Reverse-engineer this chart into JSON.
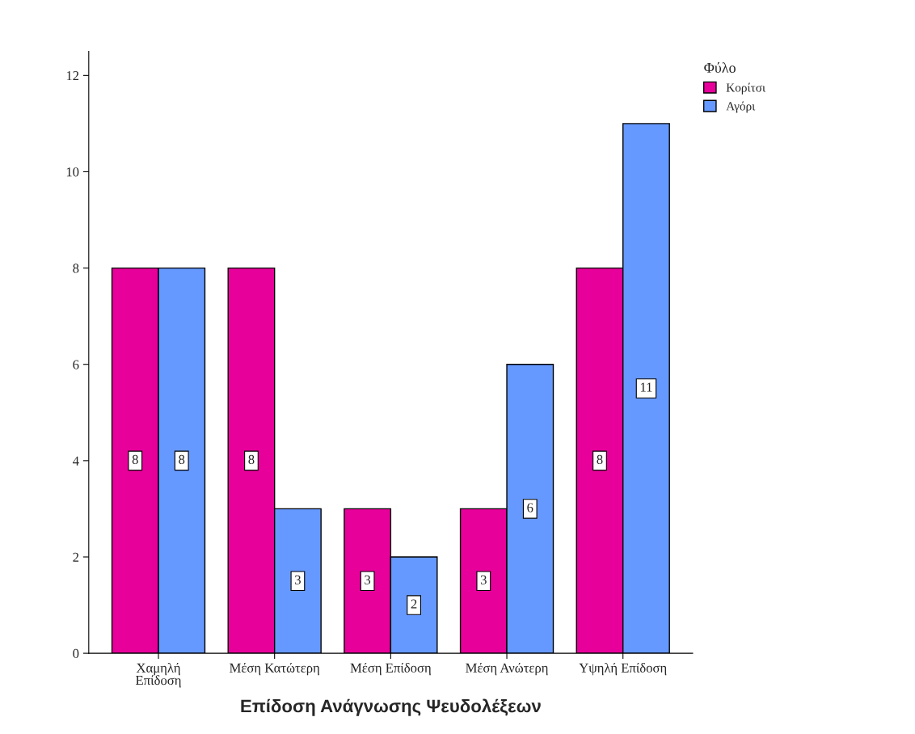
{
  "chart_data": {
    "type": "bar",
    "xlabel": "Επίδοση Ανάγνωσης Ψευδολέξεων",
    "legend_title": "Φύλο",
    "categories": [
      "Χαμηλή\nΕπίδοση",
      "Μέση Κατώτερη",
      "Μέση Επίδοση",
      "Μέση Ανώτερη",
      "Υψηλή Επίδοση"
    ],
    "series": [
      {
        "name": "Κορίτσι",
        "color": "#e8009b",
        "values": [
          8,
          8,
          3,
          3,
          8
        ]
      },
      {
        "name": "Αγόρι",
        "color": "#6699ff",
        "values": [
          8,
          3,
          2,
          6,
          11
        ]
      }
    ],
    "ylim": [
      0,
      12.5
    ],
    "yticks": [
      0,
      2,
      4,
      6,
      8,
      10,
      12
    ],
    "data_labels": true,
    "legend": "top right",
    "grid": false
  }
}
